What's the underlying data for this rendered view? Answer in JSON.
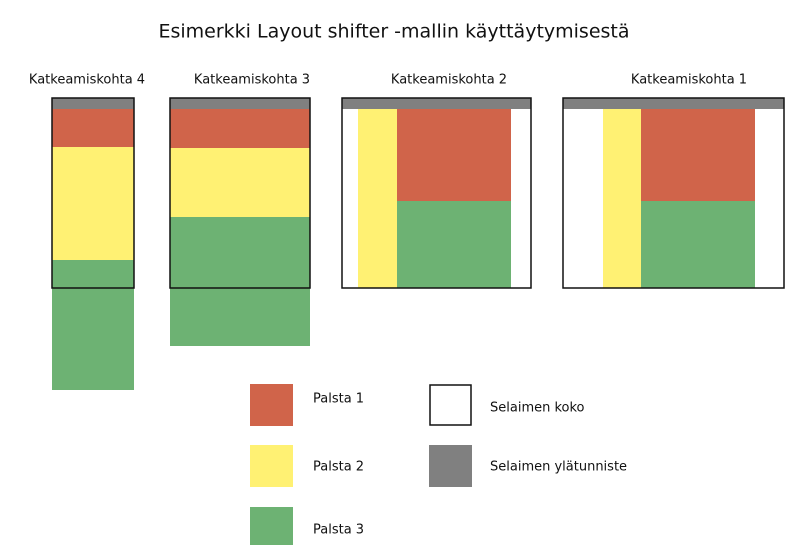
{
  "title": "Esimerkki Layout shifter -mallin käyttäytymisestä",
  "panels": [
    {
      "label": "Katkeamiskohta 4"
    },
    {
      "label": "Katkeamiskohta 3"
    },
    {
      "label": "Katkeamiskohta 2"
    },
    {
      "label": "Katkeamiskohta 1"
    }
  ],
  "legend": [
    {
      "label": "Palsta 1"
    },
    {
      "label": "Palsta 2"
    },
    {
      "label": "Palsta 3"
    },
    {
      "label": "Selaimen koko"
    },
    {
      "label": "Selaimen ylätunniste"
    }
  ]
}
